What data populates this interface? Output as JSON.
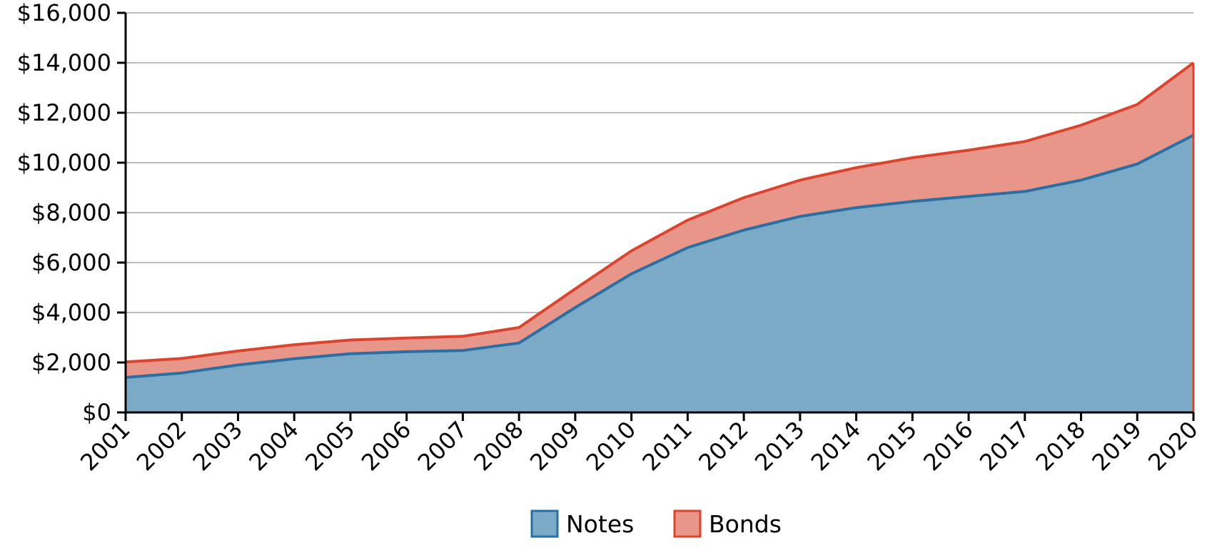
{
  "chart_data": {
    "type": "area",
    "stacked": true,
    "title": "",
    "xlabel": "",
    "ylabel": "",
    "x": [
      "2001",
      "2002",
      "2003",
      "2004",
      "2005",
      "2006",
      "2007",
      "2008",
      "2009",
      "2010",
      "2011",
      "2012",
      "2013",
      "2014",
      "2015",
      "2016",
      "2017",
      "2018",
      "2019",
      "2020"
    ],
    "ylim": [
      0,
      16000
    ],
    "y_ticks": [
      0,
      2000,
      4000,
      6000,
      8000,
      10000,
      12000,
      14000,
      16000
    ],
    "y_tick_labels": [
      "$0",
      "$2,000",
      "$4,000",
      "$6,000",
      "$8,000",
      "$10,000",
      "$12,000",
      "$14,000",
      "$16,000"
    ],
    "grid": true,
    "legend_position": "bottom-center",
    "series": [
      {
        "name": "Notes",
        "fill": "#7aaac5",
        "stroke": "#2a6fa3",
        "values": [
          1400,
          1580,
          1900,
          2150,
          2350,
          2430,
          2480,
          2780,
          4200,
          5550,
          6600,
          7300,
          7850,
          8200,
          8450,
          8650,
          8850,
          9300,
          9950,
          11100
        ]
      },
      {
        "name": "Bonds",
        "fill": "#e8958a",
        "stroke": "#d9452e",
        "values": [
          620,
          580,
          560,
          560,
          550,
          550,
          570,
          620,
          750,
          920,
          1100,
          1300,
          1450,
          1600,
          1750,
          1850,
          2000,
          2200,
          2380,
          2900
        ]
      }
    ]
  }
}
